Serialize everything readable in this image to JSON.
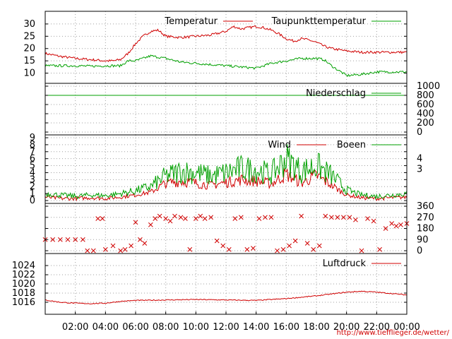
{
  "colors": {
    "red": "#d00000",
    "green": "#00a000",
    "grid": "#a0a0a0",
    "axis": "#000000"
  },
  "footer": {
    "url": "http://www.tiefflieger.de/wetter/"
  },
  "x_axis": {
    "type": "time",
    "range_hours": [
      0,
      24
    ],
    "tick_labels": [
      "02:00",
      "04:00",
      "06:00",
      "08:00",
      "10:00",
      "12:00",
      "14:00",
      "16:00",
      "18:00",
      "20:00",
      "22:00",
      "00:00"
    ]
  },
  "chart_data": [
    {
      "type": "line",
      "panel": "temperature",
      "ylim": [
        7,
        34
      ],
      "y_ticks": [
        "10",
        "15",
        "20",
        "25",
        "30"
      ],
      "grid": true,
      "legend_placement": "top-right",
      "series": [
        {
          "name": "Temperatur",
          "color": "#d00000",
          "x": [
            0,
            1,
            2,
            3,
            4,
            4.5,
            5,
            5.5,
            6,
            6.5,
            7,
            7.5,
            8,
            9,
            10,
            11,
            12,
            12.5,
            13,
            13.5,
            14,
            14.5,
            15,
            15.5,
            16,
            16.5,
            17,
            17.5,
            18,
            18.5,
            19,
            20,
            21,
            22,
            23,
            24
          ],
          "values": [
            18,
            16.8,
            16,
            15.5,
            15,
            15,
            15.5,
            18,
            22,
            25,
            27,
            27.5,
            25,
            24.5,
            25,
            25.5,
            27,
            29,
            28,
            28.5,
            29,
            28.5,
            27.5,
            26,
            24,
            23,
            24,
            23.5,
            22.5,
            21,
            20,
            19,
            18.5,
            18.5,
            18.5,
            18.5
          ]
        },
        {
          "name": "Taupunkttemperatur",
          "color": "#00a000",
          "x": [
            0,
            1,
            2,
            3,
            4,
            5,
            5.5,
            6,
            6.5,
            7,
            8,
            9,
            10,
            11,
            12,
            13,
            14,
            15,
            16,
            17,
            18,
            18.5,
            19,
            19.5,
            20,
            21,
            22,
            23,
            24
          ],
          "values": [
            13,
            13,
            13,
            12.8,
            13,
            13,
            15,
            15,
            16,
            17,
            16,
            14.5,
            14,
            13.5,
            13,
            12.5,
            12,
            14,
            15,
            16,
            16,
            15.5,
            13,
            11,
            9,
            9.5,
            10.5,
            10.5,
            10.5
          ]
        }
      ]
    },
    {
      "type": "line",
      "panel": "precipitation",
      "ylim": [
        0,
        1000
      ],
      "y_ticks": [
        "0",
        "200",
        "400",
        "600",
        "800",
        "1000"
      ],
      "grid": true,
      "legend_placement": "top-right",
      "series": [
        {
          "name": "Niederschlag",
          "color": "#00a000",
          "x": [
            0,
            24
          ],
          "values": [
            800,
            800
          ]
        }
      ]
    },
    {
      "type": "line",
      "panel": "wind",
      "ylim": [
        0,
        9
      ],
      "y_ticks": [
        "0",
        "1",
        "2",
        "3",
        "4",
        "5",
        "6",
        "7",
        "8",
        "9"
      ],
      "y_ticks_right": [
        "3",
        "4"
      ],
      "grid": true,
      "legend_placement": "top-right",
      "series": [
        {
          "name": "Wind",
          "color": "#d00000",
          "x": [
            0,
            1,
            2,
            3,
            4,
            5,
            6,
            7,
            8,
            9,
            10,
            11,
            12,
            13,
            14,
            15,
            16,
            17,
            18,
            19,
            20,
            21,
            22,
            23,
            24
          ],
          "values": [
            0.5,
            0.3,
            0.3,
            0.4,
            0.3,
            0.5,
            0.8,
            1.2,
            2.5,
            2.8,
            2.5,
            2.2,
            2.6,
            3,
            2.8,
            2.4,
            3.8,
            2.5,
            3.6,
            2.2,
            0.8,
            0.4,
            0.3,
            0.4,
            0.5
          ]
        },
        {
          "name": "Boeen",
          "color": "#00a000",
          "x": [
            0,
            1,
            2,
            3,
            4,
            5,
            6,
            7,
            8,
            9,
            10,
            11,
            12,
            13,
            14,
            15,
            16,
            17,
            18,
            19,
            20,
            21,
            22,
            23,
            24
          ],
          "values": [
            1,
            0.8,
            0.6,
            0.8,
            0.7,
            1,
            1.4,
            2,
            3.5,
            4.2,
            4,
            3.5,
            4,
            4.6,
            4.4,
            3.8,
            6,
            4.2,
            5,
            3.6,
            1.5,
            0.8,
            0.6,
            0.8,
            1
          ]
        }
      ]
    },
    {
      "type": "scatter",
      "panel": "wind_direction",
      "ylim": [
        0,
        360
      ],
      "y_ticks": [
        "0",
        "90",
        "180",
        "270",
        "360"
      ],
      "grid": true,
      "series": [
        {
          "name": "",
          "color": "#d00000",
          "marker": "x",
          "x": [
            0,
            0.5,
            1,
            1.5,
            2,
            2.5,
            2.8,
            3.2,
            3.5,
            3.8,
            4,
            4.5,
            5,
            5.3,
            5.7,
            6,
            6.3,
            6.6,
            7,
            7.3,
            7.6,
            8,
            8.3,
            8.6,
            9,
            9.3,
            9.6,
            10,
            10.3,
            10.6,
            11,
            11.4,
            11.8,
            12.2,
            12.6,
            13,
            13.4,
            13.8,
            14.2,
            14.6,
            15,
            15.4,
            15.8,
            16.2,
            16.6,
            17,
            17.4,
            17.8,
            18.2,
            18.6,
            19,
            19.4,
            19.8,
            20.2,
            20.6,
            21,
            21.4,
            21.8,
            22.2,
            22.6,
            23,
            23.3,
            23.6,
            24
          ],
          "values": [
            90,
            90,
            90,
            90,
            90,
            90,
            0,
            0,
            260,
            260,
            10,
            40,
            0,
            10,
            40,
            230,
            90,
            60,
            210,
            260,
            280,
            260,
            240,
            280,
            270,
            260,
            10,
            260,
            280,
            260,
            270,
            80,
            40,
            10,
            260,
            270,
            10,
            20,
            260,
            270,
            270,
            0,
            10,
            40,
            80,
            280,
            60,
            10,
            40,
            280,
            270,
            270,
            270,
            270,
            250,
            0,
            260,
            240,
            10,
            180,
            220,
            200,
            210,
            220
          ]
        }
      ]
    },
    {
      "type": "line",
      "panel": "pressure",
      "ylim": [
        1014,
        1026
      ],
      "y_ticks": [
        "1016",
        "1018",
        "1020",
        "1022",
        "1024"
      ],
      "grid": true,
      "legend_placement": "top-right",
      "series": [
        {
          "name": "Luftdruck",
          "color": "#d00000",
          "x": [
            0,
            1,
            2,
            3,
            4,
            5,
            6,
            8,
            10,
            12,
            14,
            16,
            18,
            19,
            20,
            21,
            22,
            23,
            24
          ],
          "values": [
            1016.5,
            1016,
            1015.8,
            1015.7,
            1015.8,
            1016.2,
            1016.4,
            1016.5,
            1016.6,
            1016.5,
            1016.4,
            1016.8,
            1017.4,
            1017.8,
            1018.2,
            1018.4,
            1018.2,
            1017.9,
            1017.6
          ]
        }
      ]
    }
  ]
}
